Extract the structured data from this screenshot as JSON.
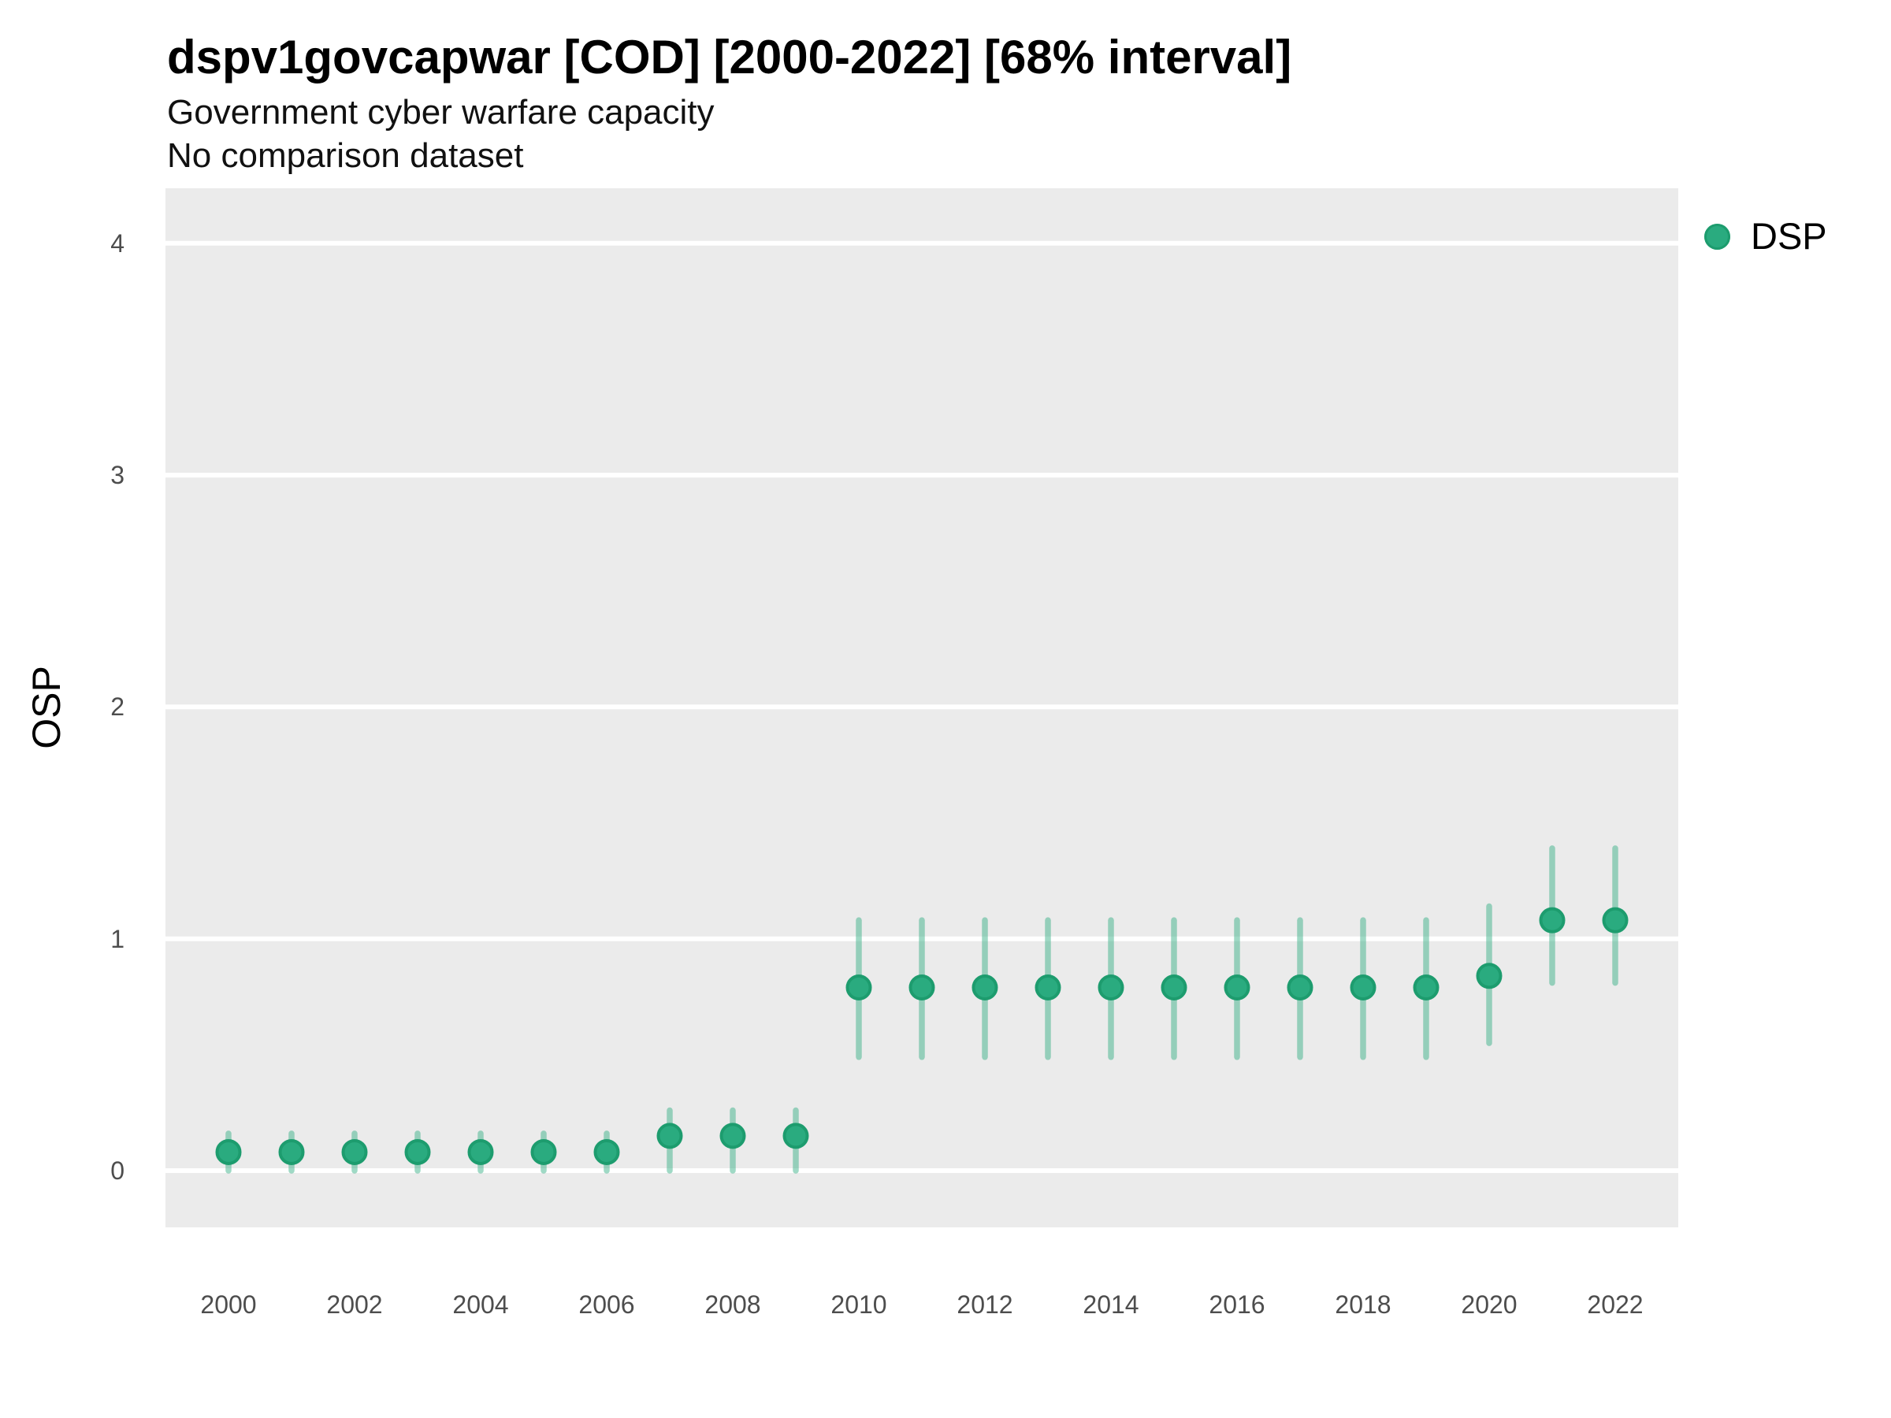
{
  "header": {
    "title": "dspv1govcapwar [COD] [2000-2022] [68% interval]",
    "subtitle": "Government cyber warfare capacity",
    "comparison": "No comparison dataset"
  },
  "legend": {
    "label": "DSP"
  },
  "colors": {
    "point_fill": "#2aab7f",
    "point_stroke": "#1d9c6e",
    "interval_bar": "rgba(42,171,127,0.45)",
    "panel_background": "#ebebeb",
    "gridline": "#ffffff",
    "tick_text": "#4d4d4d"
  },
  "chart_data": {
    "type": "pointrange",
    "title": "dspv1govcapwar [COD] [2000-2022] [68% interval]",
    "subtitle": "Government cyber warfare capacity",
    "annotation": "No comparison dataset",
    "interval": "68% interval",
    "xlabel": "",
    "ylabel": "OSP",
    "ylim": [
      -0.24,
      4.24
    ],
    "yticks": [
      0,
      1,
      2,
      3,
      4
    ],
    "xticks": [
      2000,
      2002,
      2004,
      2006,
      2008,
      2010,
      2012,
      2014,
      2016,
      2018,
      2020,
      2022
    ],
    "grid": "horizontal-major-only",
    "legend_position": "right",
    "x": [
      2000,
      2001,
      2002,
      2003,
      2004,
      2005,
      2006,
      2007,
      2008,
      2009,
      2010,
      2011,
      2012,
      2013,
      2014,
      2015,
      2016,
      2017,
      2018,
      2019,
      2020,
      2021,
      2022
    ],
    "series": [
      {
        "name": "DSP",
        "values": [
          0.08,
          0.08,
          0.08,
          0.08,
          0.08,
          0.08,
          0.08,
          0.15,
          0.15,
          0.15,
          0.79,
          0.79,
          0.79,
          0.79,
          0.79,
          0.79,
          0.79,
          0.79,
          0.79,
          0.79,
          0.84,
          1.08,
          1.08
        ],
        "lower": [
          0.0,
          0.0,
          0.0,
          0.0,
          0.0,
          0.0,
          0.0,
          0.0,
          0.0,
          0.0,
          0.49,
          0.49,
          0.49,
          0.49,
          0.49,
          0.49,
          0.49,
          0.49,
          0.49,
          0.49,
          0.55,
          0.81,
          0.81
        ],
        "upper": [
          0.16,
          0.16,
          0.16,
          0.16,
          0.16,
          0.16,
          0.16,
          0.26,
          0.26,
          0.26,
          1.08,
          1.08,
          1.08,
          1.08,
          1.08,
          1.08,
          1.08,
          1.08,
          1.08,
          1.08,
          1.14,
          1.39,
          1.39
        ]
      }
    ]
  }
}
